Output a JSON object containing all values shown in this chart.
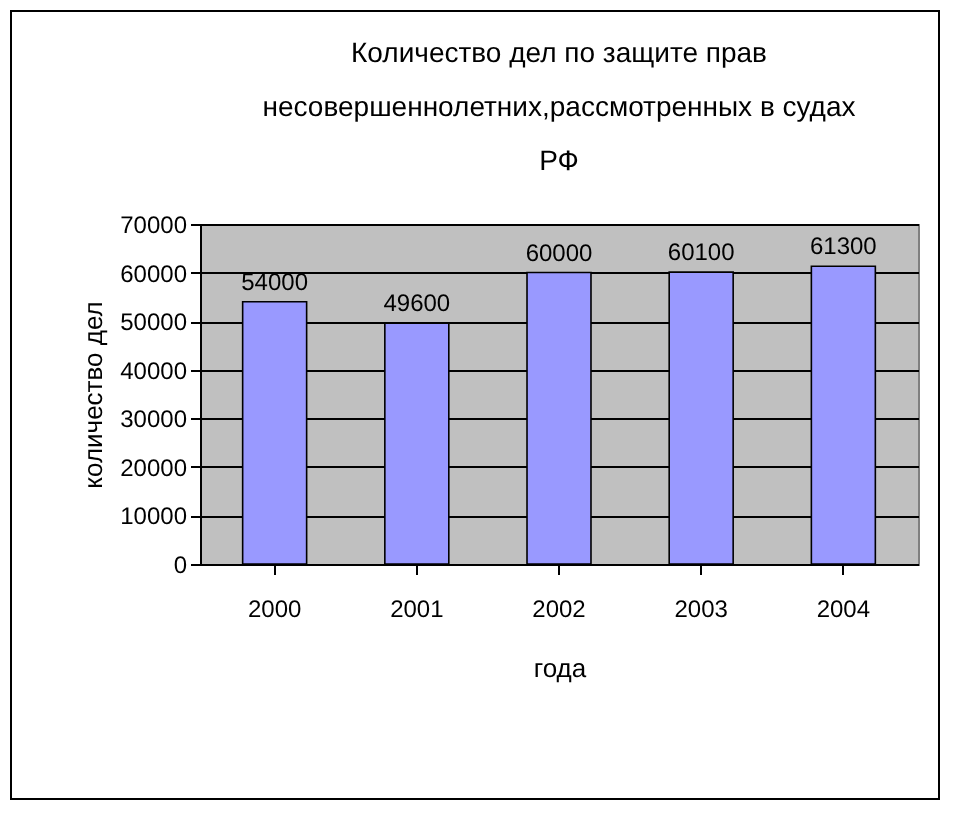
{
  "chart_data": {
    "type": "bar",
    "title": "Количество дел по защите прав\nнесовершеннолетних,рассмотренных в судах\nРФ",
    "xlabel": "года",
    "ylabel": "количество дел",
    "categories": [
      "2000",
      "2001",
      "2002",
      "2003",
      "2004"
    ],
    "values": [
      54000,
      49600,
      60000,
      60100,
      61300
    ],
    "color": "#9999ff",
    "ylim": [
      0,
      70000
    ],
    "yticks": [
      0,
      10000,
      20000,
      30000,
      40000,
      50000,
      60000,
      70000
    ],
    "grid": "y",
    "data_labels": true
  }
}
